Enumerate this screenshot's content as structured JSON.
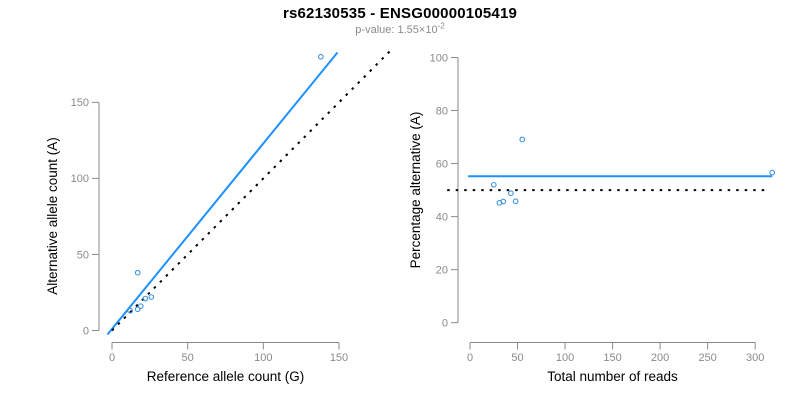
{
  "header": {
    "title": "rs62130535 - ENSG00000105419",
    "p_value_prefix": "p-value: 1.55×10",
    "p_value_exponent": "-2"
  },
  "colors": {
    "fit_line_blue": "#1E90FF",
    "point_blue": "#3E92DF",
    "identity_line_black": "#000000",
    "axis_gray": "#8A8A8A",
    "tick_label_gray": "#8A8A8A",
    "axis_title_black": "#000000",
    "background": "#FFFFFF"
  },
  "chart_data": [
    {
      "name": "allele-counts",
      "type": "scatter",
      "xlabel": "Reference allele count (G)",
      "ylabel": "Alternative allele count (A)",
      "xlim": [
        0,
        150
      ],
      "ylim": [
        0,
        150
      ],
      "xticks": [
        0,
        50,
        100,
        150
      ],
      "yticks": [
        0,
        50,
        100,
        150
      ],
      "grid": false,
      "points": [
        [
          17,
          38
        ],
        [
          12,
          13
        ],
        [
          17,
          14
        ],
        [
          19,
          16
        ],
        [
          22,
          21
        ],
        [
          26,
          22
        ],
        [
          138,
          180
        ]
      ],
      "lines": [
        {
          "name": "fit-line",
          "style": "solid",
          "color_key": "fit_line_blue",
          "slope": 1.22,
          "intercept": 1,
          "x_range": [
            -3,
            149
          ]
        },
        {
          "name": "identity-line",
          "style": "dotted",
          "color_key": "identity_line_black",
          "slope": 1,
          "intercept": 0,
          "x_range": [
            0,
            184
          ]
        }
      ]
    },
    {
      "name": "percentage-vs-reads",
      "type": "scatter",
      "xlabel": "Total number of reads",
      "ylabel": "Percentage alternative (A)",
      "xlim": [
        0,
        300
      ],
      "ylim": [
        0,
        100
      ],
      "xticks": [
        0,
        50,
        100,
        150,
        200,
        250,
        300
      ],
      "yticks": [
        0,
        20,
        40,
        60,
        80,
        100
      ],
      "grid": false,
      "points": [
        [
          55,
          69.1
        ],
        [
          25,
          52.0
        ],
        [
          31,
          45.2
        ],
        [
          35,
          45.7
        ],
        [
          43,
          48.8
        ],
        [
          48,
          45.8
        ],
        [
          318,
          56.6
        ]
      ],
      "lines": [
        {
          "name": "mean-percentage-line",
          "style": "solid",
          "color_key": "fit_line_blue",
          "slope": 0,
          "intercept": 55.2,
          "x_range": [
            -2,
            318
          ]
        },
        {
          "name": "fifty-percent-line",
          "style": "dotted",
          "color_key": "identity_line_black",
          "slope": 0,
          "intercept": 50,
          "x_range": [
            -24,
            315
          ]
        }
      ]
    }
  ]
}
